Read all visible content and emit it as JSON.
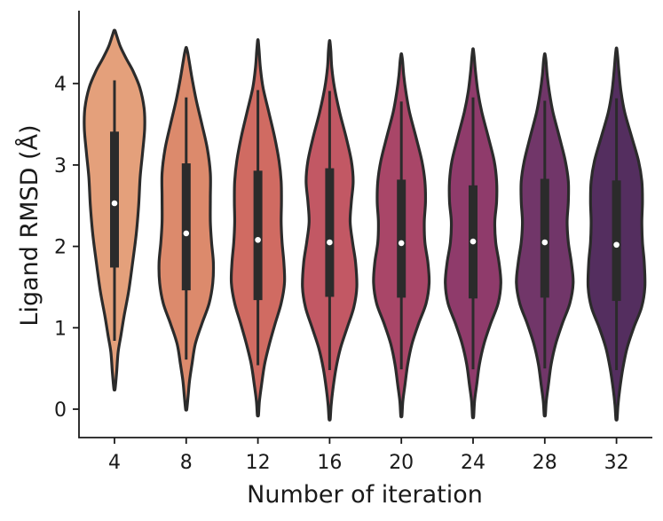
{
  "chart_data": {
    "type": "violin",
    "title": "",
    "xlabel": "Number of iteration",
    "ylabel": "Ligand RMSD (Å)",
    "categories": [
      "4",
      "8",
      "12",
      "16",
      "20",
      "24",
      "28",
      "32"
    ],
    "y_ticks": [
      "0",
      "1",
      "2",
      "3",
      "4"
    ],
    "ylim": [
      -0.35,
      4.9
    ],
    "grid": false,
    "legend": "none",
    "colors": [
      "#e4a07b",
      "#dc8a6c",
      "#d06b62",
      "#c25864",
      "#a94668",
      "#8f3b6b",
      "#713669",
      "#542e5f"
    ],
    "series": [
      {
        "category": "4",
        "median": 2.53,
        "q1": 1.74,
        "q3": 3.41,
        "whisker_low": 0.84,
        "whisker_high": 4.04,
        "min": 0.25,
        "max": 4.65,
        "density": [
          [
            0.25,
            0.02
          ],
          [
            0.45,
            0.07
          ],
          [
            0.7,
            0.12
          ],
          [
            0.9,
            0.21
          ],
          [
            1.15,
            0.32
          ],
          [
            1.45,
            0.47
          ],
          [
            1.8,
            0.6
          ],
          [
            2.15,
            0.72
          ],
          [
            2.5,
            0.8
          ],
          [
            2.85,
            0.85
          ],
          [
            3.15,
            0.93
          ],
          [
            3.45,
            1.0
          ],
          [
            3.7,
            0.98
          ],
          [
            3.95,
            0.84
          ],
          [
            4.15,
            0.62
          ],
          [
            4.3,
            0.4
          ],
          [
            4.45,
            0.2
          ],
          [
            4.58,
            0.08
          ],
          [
            4.65,
            0.02
          ]
        ]
      },
      {
        "category": "8",
        "median": 2.16,
        "q1": 1.46,
        "q3": 3.02,
        "whisker_low": 0.61,
        "whisker_high": 3.83,
        "min": 0.0,
        "max": 4.44,
        "density": [
          [
            0.0,
            0.02
          ],
          [
            0.15,
            0.06
          ],
          [
            0.35,
            0.11
          ],
          [
            0.55,
            0.19
          ],
          [
            0.8,
            0.3
          ],
          [
            1.05,
            0.52
          ],
          [
            1.3,
            0.76
          ],
          [
            1.55,
            0.88
          ],
          [
            1.8,
            0.9
          ],
          [
            2.05,
            0.84
          ],
          [
            2.3,
            0.8
          ],
          [
            2.6,
            0.8
          ],
          [
            2.9,
            0.8
          ],
          [
            3.2,
            0.7
          ],
          [
            3.5,
            0.52
          ],
          [
            3.8,
            0.33
          ],
          [
            4.05,
            0.2
          ],
          [
            4.25,
            0.11
          ],
          [
            4.38,
            0.05
          ],
          [
            4.44,
            0.01
          ]
        ]
      },
      {
        "category": "12",
        "median": 2.08,
        "q1": 1.34,
        "q3": 2.93,
        "whisker_low": 0.54,
        "whisker_high": 3.92,
        "min": -0.07,
        "max": 4.53,
        "density": [
          [
            -0.07,
            0.02
          ],
          [
            0.1,
            0.05
          ],
          [
            0.3,
            0.12
          ],
          [
            0.55,
            0.22
          ],
          [
            0.8,
            0.38
          ],
          [
            1.05,
            0.57
          ],
          [
            1.3,
            0.77
          ],
          [
            1.55,
            0.88
          ],
          [
            1.8,
            0.86
          ],
          [
            2.05,
            0.8
          ],
          [
            2.3,
            0.77
          ],
          [
            2.55,
            0.78
          ],
          [
            2.8,
            0.77
          ],
          [
            3.05,
            0.7
          ],
          [
            3.35,
            0.55
          ],
          [
            3.65,
            0.36
          ],
          [
            3.95,
            0.17
          ],
          [
            4.2,
            0.08
          ],
          [
            4.4,
            0.04
          ],
          [
            4.53,
            0.01
          ]
        ]
      },
      {
        "category": "16",
        "median": 2.05,
        "q1": 1.38,
        "q3": 2.96,
        "whisker_low": 0.48,
        "whisker_high": 3.91,
        "min": -0.12,
        "max": 4.52,
        "density": [
          [
            -0.12,
            0.02
          ],
          [
            0.05,
            0.05
          ],
          [
            0.25,
            0.11
          ],
          [
            0.5,
            0.21
          ],
          [
            0.75,
            0.36
          ],
          [
            1.0,
            0.58
          ],
          [
            1.25,
            0.8
          ],
          [
            1.5,
            0.9
          ],
          [
            1.8,
            0.86
          ],
          [
            2.05,
            0.76
          ],
          [
            2.3,
            0.68
          ],
          [
            2.55,
            0.72
          ],
          [
            2.8,
            0.78
          ],
          [
            3.05,
            0.72
          ],
          [
            3.35,
            0.54
          ],
          [
            3.65,
            0.33
          ],
          [
            3.95,
            0.16
          ],
          [
            4.2,
            0.07
          ],
          [
            4.4,
            0.04
          ],
          [
            4.52,
            0.01
          ]
        ]
      },
      {
        "category": "20",
        "median": 2.04,
        "q1": 1.37,
        "q3": 2.82,
        "whisker_low": 0.49,
        "whisker_high": 3.78,
        "min": -0.08,
        "max": 4.36,
        "density": [
          [
            -0.08,
            0.02
          ],
          [
            0.1,
            0.05
          ],
          [
            0.3,
            0.12
          ],
          [
            0.55,
            0.21
          ],
          [
            0.8,
            0.35
          ],
          [
            1.05,
            0.57
          ],
          [
            1.3,
            0.82
          ],
          [
            1.55,
            0.92
          ],
          [
            1.8,
            0.88
          ],
          [
            2.05,
            0.78
          ],
          [
            2.3,
            0.76
          ],
          [
            2.55,
            0.8
          ],
          [
            2.8,
            0.78
          ],
          [
            3.05,
            0.68
          ],
          [
            3.35,
            0.48
          ],
          [
            3.65,
            0.27
          ],
          [
            3.9,
            0.15
          ],
          [
            4.1,
            0.08
          ],
          [
            4.28,
            0.04
          ],
          [
            4.36,
            0.01
          ]
        ]
      },
      {
        "category": "24",
        "median": 2.06,
        "q1": 1.36,
        "q3": 2.75,
        "whisker_low": 0.49,
        "whisker_high": 3.83,
        "min": -0.09,
        "max": 4.42,
        "density": [
          [
            -0.09,
            0.02
          ],
          [
            0.1,
            0.05
          ],
          [
            0.3,
            0.12
          ],
          [
            0.55,
            0.21
          ],
          [
            0.8,
            0.36
          ],
          [
            1.05,
            0.58
          ],
          [
            1.3,
            0.83
          ],
          [
            1.55,
            0.92
          ],
          [
            1.8,
            0.86
          ],
          [
            2.05,
            0.75
          ],
          [
            2.3,
            0.72
          ],
          [
            2.55,
            0.78
          ],
          [
            2.8,
            0.78
          ],
          [
            3.05,
            0.7
          ],
          [
            3.35,
            0.5
          ],
          [
            3.65,
            0.29
          ],
          [
            3.9,
            0.16
          ],
          [
            4.15,
            0.08
          ],
          [
            4.32,
            0.04
          ],
          [
            4.42,
            0.01
          ]
        ]
      },
      {
        "category": "28",
        "median": 2.05,
        "q1": 1.37,
        "q3": 2.83,
        "whisker_low": 0.5,
        "whisker_high": 3.79,
        "min": -0.07,
        "max": 4.36,
        "density": [
          [
            -0.07,
            0.02
          ],
          [
            0.1,
            0.05
          ],
          [
            0.3,
            0.12
          ],
          [
            0.55,
            0.21
          ],
          [
            0.8,
            0.36
          ],
          [
            1.05,
            0.58
          ],
          [
            1.3,
            0.83
          ],
          [
            1.55,
            0.94
          ],
          [
            1.8,
            0.88
          ],
          [
            2.05,
            0.78
          ],
          [
            2.3,
            0.74
          ],
          [
            2.55,
            0.78
          ],
          [
            2.8,
            0.78
          ],
          [
            3.05,
            0.68
          ],
          [
            3.35,
            0.48
          ],
          [
            3.65,
            0.27
          ],
          [
            3.9,
            0.15
          ],
          [
            4.1,
            0.08
          ],
          [
            4.28,
            0.04
          ],
          [
            4.36,
            0.01
          ]
        ]
      },
      {
        "category": "32",
        "median": 2.02,
        "q1": 1.33,
        "q3": 2.81,
        "whisker_low": 0.48,
        "whisker_high": 3.82,
        "min": -0.12,
        "max": 4.43,
        "density": [
          [
            -0.12,
            0.02
          ],
          [
            0.05,
            0.05
          ],
          [
            0.25,
            0.11
          ],
          [
            0.5,
            0.21
          ],
          [
            0.75,
            0.35
          ],
          [
            1.0,
            0.57
          ],
          [
            1.25,
            0.83
          ],
          [
            1.5,
            0.94
          ],
          [
            1.8,
            0.92
          ],
          [
            2.05,
            0.86
          ],
          [
            2.3,
            0.84
          ],
          [
            2.55,
            0.86
          ],
          [
            2.8,
            0.84
          ],
          [
            3.05,
            0.73
          ],
          [
            3.35,
            0.5
          ],
          [
            3.65,
            0.27
          ],
          [
            3.9,
            0.15
          ],
          [
            4.15,
            0.08
          ],
          [
            4.33,
            0.04
          ],
          [
            4.43,
            0.01
          ]
        ]
      }
    ]
  }
}
